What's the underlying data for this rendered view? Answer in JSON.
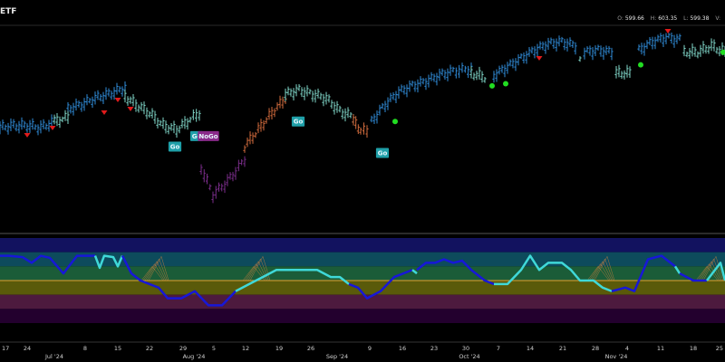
{
  "header": {
    "title": "ETF",
    "ohlc": [
      {
        "key": "O:",
        "value": "599.66"
      },
      {
        "key": "H:",
        "value": "603.35"
      },
      {
        "key": "L:",
        "value": "599.38"
      },
      {
        "key": "V:",
        "value": ""
      }
    ]
  },
  "colors": {
    "strong_up": "#2f8bd8",
    "weak_up": "#7fd6c8",
    "weak_down": "#d06a3c",
    "strong_down": "#7a2d8a",
    "go_triangle": "#e11b1b",
    "go_dot": "#22dd22",
    "osc_strong": "#1717d8",
    "osc_weak": "#3fd8d8"
  },
  "chart_data": [
    {
      "type": "line",
      "name": "price-panel",
      "x_ticks": [
        "17",
        "24",
        "Jul '24",
        "8",
        "15",
        "22",
        "29",
        "5",
        "Aug '24",
        "12",
        "19",
        "26",
        "Sep '24",
        "9",
        "16",
        "23",
        "30",
        "7",
        "Oct '24",
        "14",
        "21",
        "28",
        "Nov '24",
        "4",
        "11",
        "18",
        "25"
      ],
      "ylim": [
        520,
        615
      ],
      "series": [
        {
          "segment": "strong_up",
          "x": [
            0,
            15,
            30,
            45,
            60
          ],
          "y": [
            567,
            568,
            568,
            567,
            570
          ]
        },
        {
          "segment": "weak_up",
          "x": [
            60,
            75
          ],
          "y": [
            570,
            572
          ]
        },
        {
          "segment": "strong_up",
          "x": [
            75,
            90,
            105,
            120,
            138
          ],
          "y": [
            576,
            578,
            581,
            583,
            586
          ]
        },
        {
          "segment": "weak_up",
          "x": [
            138,
            150,
            165,
            180,
            195,
            210,
            220
          ],
          "y": [
            582,
            578,
            574,
            568,
            566,
            571,
            574
          ]
        },
        {
          "segment": "strong_down",
          "x": [
            222,
            235,
            248,
            260,
            270
          ],
          "y": [
            548,
            535,
            540,
            546,
            552
          ]
        },
        {
          "segment": "weak_down",
          "x": [
            270,
            285,
            300,
            315
          ],
          "y": [
            558,
            566,
            574,
            581
          ]
        },
        {
          "segment": "weak_up",
          "x": [
            315,
            330,
            345,
            360,
            375,
            390
          ],
          "y": [
            583,
            585,
            583,
            581,
            575,
            572
          ]
        },
        {
          "segment": "weak_down",
          "x": [
            390,
            398,
            405
          ],
          "y": [
            570,
            566,
            565
          ]
        },
        {
          "segment": "strong_up",
          "x": [
            410,
            425,
            440,
            455,
            470,
            485,
            500,
            520
          ],
          "y": [
            570,
            578,
            584,
            587,
            589,
            592,
            594,
            595
          ]
        },
        {
          "segment": "weak_up",
          "x": [
            520,
            535
          ],
          "y": [
            593,
            591
          ]
        },
        {
          "segment": "strong_up",
          "x": [
            545,
            560,
            575,
            590,
            605,
            620,
            635
          ],
          "y": [
            592,
            596,
            600,
            604,
            607,
            608,
            606
          ]
        },
        {
          "segment": "weak_up",
          "x": [
            640
          ],
          "y": [
            601
          ]
        },
        {
          "segment": "strong_up",
          "x": [
            645,
            660,
            675
          ],
          "y": [
            603,
            604,
            603
          ]
        },
        {
          "segment": "weak_up",
          "x": [
            680,
            695
          ],
          "y": [
            593,
            593
          ]
        },
        {
          "segment": "strong_up",
          "x": [
            705,
            720,
            735,
            750
          ],
          "y": [
            604,
            608,
            610,
            609
          ]
        },
        {
          "segment": "weak_up",
          "x": [
            755,
            770,
            785,
            800
          ],
          "y": [
            603,
            603,
            606,
            603
          ]
        }
      ],
      "go_triangles_x": [
        30,
        58,
        115,
        130,
        144,
        595,
        737
      ],
      "go_dots": [
        {
          "x": 436,
          "y": 570
        },
        {
          "x": 543,
          "y": 587
        },
        {
          "x": 558,
          "y": 588
        },
        {
          "x": 707,
          "y": 597
        },
        {
          "x": 798,
          "y": 603
        }
      ],
      "labels": [
        {
          "text": "Go",
          "x": 193,
          "y": 558,
          "bg": "#1f9fa8"
        },
        {
          "text": "Go",
          "x": 217,
          "y": 563,
          "bg": "#1f9fa8"
        },
        {
          "text": "NoGo",
          "x": 230,
          "y": 563,
          "bg": "#8a2a8a"
        },
        {
          "text": "Go",
          "x": 329,
          "y": 570,
          "bg": "#1f9fa8"
        },
        {
          "text": "Go",
          "x": 422,
          "y": 555,
          "bg": "#1f9fa8"
        }
      ]
    },
    {
      "type": "line",
      "name": "oscillator-panel",
      "ylim": [
        -6,
        6
      ],
      "bands": [
        {
          "from": 6,
          "to": 4,
          "color": "#12125f"
        },
        {
          "from": 4,
          "to": 2,
          "color": "#0d4b5c"
        },
        {
          "from": 2,
          "to": 0,
          "color": "#1b5c38"
        },
        {
          "from": 0,
          "to": -2,
          "color": "#5a5a0a"
        },
        {
          "from": -2,
          "to": -4,
          "color": "#4d1a3e"
        },
        {
          "from": -4,
          "to": -6,
          "color": "#23002e"
        }
      ],
      "zero_line": 0,
      "series": [
        {
          "segment": "strong",
          "x": [
            0,
            10,
            25,
            35,
            45,
            55,
            70,
            85,
            95,
            105
          ],
          "y": [
            3.5,
            3.5,
            3.3,
            2.5,
            3.5,
            3.2,
            1.0,
            3.5,
            3.5,
            3.5
          ]
        },
        {
          "segment": "weak",
          "x": [
            105,
            110,
            115,
            125,
            130,
            135
          ],
          "y": [
            3.5,
            1.8,
            3.5,
            3.3,
            2.0,
            3.5
          ]
        },
        {
          "segment": "strong",
          "x": [
            135,
            145,
            155,
            165,
            175,
            185,
            200,
            215,
            230,
            245,
            260
          ],
          "y": [
            3.5,
            1.0,
            0,
            -0.5,
            -1.0,
            -2.5,
            -2.5,
            -1.5,
            -3.5,
            -3.5,
            -1.5
          ]
        },
        {
          "segment": "weak",
          "x": [
            260,
            275,
            290,
            305,
            320,
            335,
            350,
            365,
            375,
            385
          ],
          "y": [
            -1.5,
            -0.5,
            0.5,
            1.5,
            1.5,
            1.5,
            1.5,
            0.5,
            0.5,
            -0.5
          ]
        },
        {
          "segment": "strong",
          "x": [
            385,
            395,
            405,
            420,
            435,
            445,
            455
          ],
          "y": [
            -0.5,
            -1.0,
            -2.5,
            -1.5,
            0.5,
            1.0,
            1.5
          ]
        },
        {
          "segment": "weak",
          "x": [
            455,
            460
          ],
          "y": [
            1.5,
            1.0
          ]
        },
        {
          "segment": "strong",
          "x": [
            460,
            470,
            480,
            490,
            500,
            510,
            520,
            535,
            545
          ],
          "y": [
            1.5,
            2.5,
            2.5,
            3.0,
            2.5,
            2.8,
            1.5,
            0,
            -0.5
          ]
        },
        {
          "segment": "weak",
          "x": [
            545,
            560,
            575,
            585,
            595,
            605,
            620,
            630,
            640,
            655,
            665,
            675
          ],
          "y": [
            -0.5,
            -0.5,
            1.5,
            3.5,
            1.5,
            2.5,
            2.5,
            1.5,
            0,
            0,
            -1.0,
            -1.5
          ]
        },
        {
          "segment": "strong",
          "x": [
            675,
            690,
            700,
            715,
            730,
            745
          ],
          "y": [
            -1.5,
            -1.0,
            -1.5,
            3.0,
            3.5,
            2.0
          ]
        },
        {
          "segment": "weak",
          "x": [
            745,
            750
          ],
          "y": [
            2.0,
            1.0
          ]
        },
        {
          "segment": "strong",
          "x": [
            750,
            765,
            780
          ],
          "y": [
            1.0,
            0,
            0
          ]
        },
        {
          "segment": "weak",
          "x": [
            780,
            795,
            800
          ],
          "y": [
            0,
            2.5,
            0
          ]
        }
      ],
      "fans_x": [
        168,
        280,
        660,
        780
      ]
    }
  ]
}
